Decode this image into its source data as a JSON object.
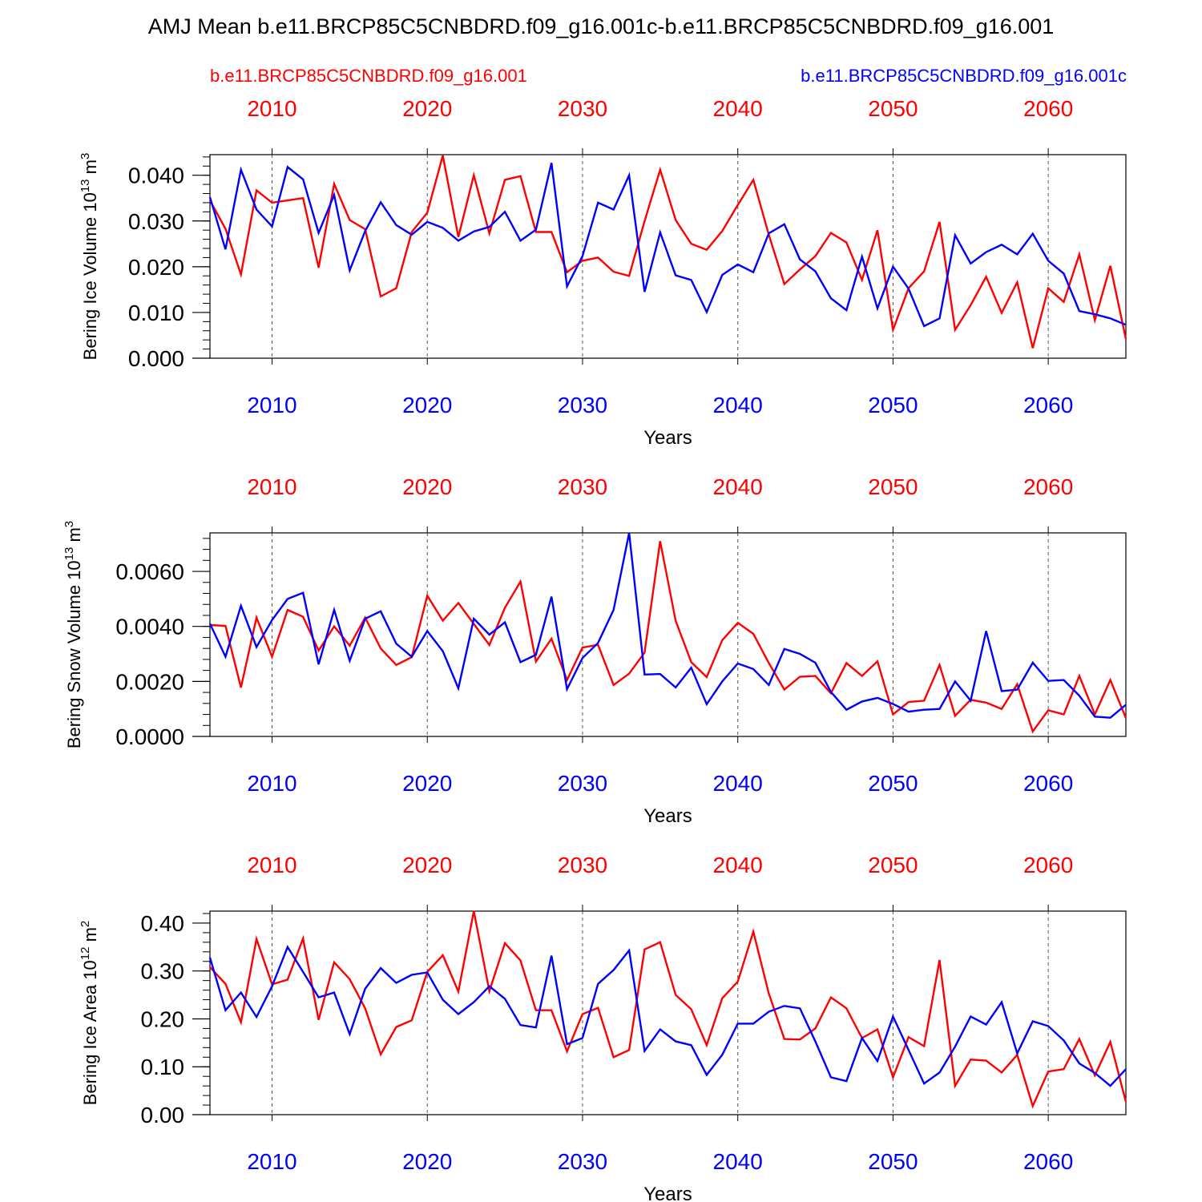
{
  "title": "AMJ Mean b.e11.BRCP85C5CNBDRD.f09_g16.001c-b.e11.BRCP85C5CNBDRD.f09_g16.001",
  "legend": {
    "red_label": "b.e11.BRCP85C5CNBDRD.f09_g16.001",
    "blue_label": "b.e11.BRCP85C5CNBDRD.f09_g16.001c"
  },
  "colors": {
    "red": "#ff0000",
    "blue": "#0000ff"
  },
  "chart_data": [
    {
      "type": "line",
      "ylabel": "Bering Ice Volume 10",
      "ylabel_exp": "13",
      "ylabel_unit": "m",
      "ylabel_unit_exp": "3",
      "xlabel": "Years",
      "xlim": [
        2006,
        2065
      ],
      "ylim": [
        0.0,
        0.0445
      ],
      "x_ticks": [
        "2010",
        "2020",
        "2030",
        "2040",
        "2050",
        "2060"
      ],
      "y_ticks": [
        "0.000",
        "0.010",
        "0.020",
        "0.030",
        "0.040"
      ],
      "y_minor_step": 0.002,
      "grid": "dashed vertical at major x ticks",
      "x_start": 2006,
      "series": [
        {
          "color": "red",
          "values": [
            0.0345,
            0.0283,
            0.0183,
            0.0367,
            0.034,
            0.0345,
            0.035,
            0.0198,
            0.0381,
            0.0302,
            0.0282,
            0.0135,
            0.0153,
            0.0276,
            0.0318,
            0.0443,
            0.0265,
            0.04,
            0.0273,
            0.039,
            0.0398,
            0.0276,
            0.0276,
            0.0188,
            0.0213,
            0.022,
            0.0189,
            0.018,
            0.03,
            0.0412,
            0.0302,
            0.025,
            0.0237,
            0.0278,
            0.0335,
            0.039,
            0.027,
            0.0162,
            0.0194,
            0.0223,
            0.0274,
            0.0253,
            0.0171,
            0.028,
            0.0062,
            0.0153,
            0.019,
            0.0298,
            0.0062,
            0.0116,
            0.0178,
            0.0099,
            0.0166,
            0.0022,
            0.0153,
            0.0123,
            0.0227,
            0.0083,
            0.0202,
            0.0042
          ]
        },
        {
          "color": "blue",
          "values": [
            0.0352,
            0.0238,
            0.0412,
            0.0325,
            0.0288,
            0.0418,
            0.0391,
            0.0274,
            0.0357,
            0.0192,
            0.0278,
            0.0341,
            0.0291,
            0.027,
            0.0298,
            0.0285,
            0.0257,
            0.0277,
            0.0287,
            0.032,
            0.0257,
            0.0281,
            0.0427,
            0.0157,
            0.0223,
            0.034,
            0.0325,
            0.04,
            0.0145,
            0.0275,
            0.0181,
            0.0171,
            0.0101,
            0.0182,
            0.0205,
            0.0188,
            0.0273,
            0.0293,
            0.0216,
            0.019,
            0.0131,
            0.0105,
            0.0222,
            0.0109,
            0.02,
            0.0152,
            0.007,
            0.0087,
            0.0269,
            0.0207,
            0.0232,
            0.0248,
            0.0227,
            0.0272,
            0.0213,
            0.0185,
            0.0103,
            0.0096,
            0.0087,
            0.0073
          ]
        }
      ]
    },
    {
      "type": "line",
      "ylabel": "Bering Snow Volume 10",
      "ylabel_exp": "13",
      "ylabel_unit": "m",
      "ylabel_unit_exp": "3",
      "xlabel": "Years",
      "xlim": [
        2006,
        2065
      ],
      "ylim": [
        0.0,
        0.0074
      ],
      "x_ticks": [
        "2010",
        "2020",
        "2030",
        "2040",
        "2050",
        "2060"
      ],
      "y_ticks": [
        "0.0000",
        "0.0020",
        "0.0040",
        "0.0060"
      ],
      "y_minor_step": 0.0004,
      "grid": "dashed vertical at major x ticks",
      "x_start": 2006,
      "series": [
        {
          "color": "red",
          "values": [
            0.00405,
            0.00402,
            0.00178,
            0.00432,
            0.0029,
            0.0046,
            0.00435,
            0.00312,
            0.004,
            0.0033,
            0.00432,
            0.0032,
            0.0026,
            0.00288,
            0.00512,
            0.00421,
            0.00485,
            0.00409,
            0.00332,
            0.00468,
            0.00563,
            0.00272,
            0.00355,
            0.00205,
            0.00323,
            0.00333,
            0.00187,
            0.00228,
            0.00305,
            0.0071,
            0.0042,
            0.0027,
            0.00216,
            0.0035,
            0.00413,
            0.00373,
            0.00267,
            0.0017,
            0.00217,
            0.0022,
            0.00157,
            0.00267,
            0.0022,
            0.00273,
            0.0008,
            0.00125,
            0.0013,
            0.0026,
            0.00075,
            0.00133,
            0.00123,
            0.001,
            0.0019,
            0.00018,
            0.00095,
            0.0008,
            0.0022,
            0.0008,
            0.00205,
            0.00067
          ]
        },
        {
          "color": "blue",
          "values": [
            0.0041,
            0.0029,
            0.00475,
            0.00325,
            0.00423,
            0.005,
            0.00522,
            0.00262,
            0.0046,
            0.00275,
            0.00428,
            0.00455,
            0.00337,
            0.0029,
            0.00383,
            0.0031,
            0.00175,
            0.00428,
            0.0037,
            0.00415,
            0.0027,
            0.00297,
            0.00508,
            0.00172,
            0.00285,
            0.0034,
            0.0046,
            0.0074,
            0.00225,
            0.00227,
            0.00178,
            0.0025,
            0.00117,
            0.002,
            0.00265,
            0.00245,
            0.00187,
            0.00318,
            0.003,
            0.00268,
            0.00162,
            0.00097,
            0.00127,
            0.0014,
            0.00118,
            0.0009,
            0.00097,
            0.001,
            0.002,
            0.0013,
            0.00383,
            0.00165,
            0.0017,
            0.00268,
            0.00202,
            0.00205,
            0.00148,
            0.00072,
            0.00068,
            0.00115
          ]
        }
      ]
    },
    {
      "type": "line",
      "ylabel": "Bering Ice Area 10",
      "ylabel_exp": "12",
      "ylabel_unit": "m",
      "ylabel_unit_exp": "2",
      "xlabel": "Years",
      "xlim": [
        2006,
        2065
      ],
      "ylim": [
        0.0,
        0.425
      ],
      "x_ticks": [
        "2010",
        "2020",
        "2030",
        "2040",
        "2050",
        "2060"
      ],
      "y_ticks": [
        "0.00",
        "0.10",
        "0.20",
        "0.30",
        "0.40"
      ],
      "y_minor_step": 0.02,
      "grid": "dashed vertical at major x ticks",
      "x_start": 2006,
      "series": [
        {
          "color": "red",
          "values": [
            0.308,
            0.273,
            0.193,
            0.367,
            0.272,
            0.282,
            0.368,
            0.198,
            0.318,
            0.283,
            0.222,
            0.126,
            0.183,
            0.197,
            0.298,
            0.333,
            0.257,
            0.425,
            0.258,
            0.358,
            0.322,
            0.218,
            0.218,
            0.132,
            0.21,
            0.223,
            0.12,
            0.135,
            0.345,
            0.36,
            0.25,
            0.22,
            0.145,
            0.243,
            0.278,
            0.382,
            0.253,
            0.158,
            0.157,
            0.18,
            0.245,
            0.222,
            0.16,
            0.178,
            0.078,
            0.162,
            0.143,
            0.323,
            0.06,
            0.115,
            0.113,
            0.088,
            0.125,
            0.018,
            0.09,
            0.095,
            0.158,
            0.082,
            0.152,
            0.027
          ]
        },
        {
          "color": "blue",
          "values": [
            0.328,
            0.218,
            0.255,
            0.204,
            0.268,
            0.35,
            0.298,
            0.245,
            0.255,
            0.168,
            0.263,
            0.306,
            0.275,
            0.292,
            0.297,
            0.24,
            0.21,
            0.235,
            0.268,
            0.242,
            0.187,
            0.182,
            0.332,
            0.147,
            0.16,
            0.273,
            0.302,
            0.343,
            0.133,
            0.178,
            0.153,
            0.145,
            0.083,
            0.125,
            0.19,
            0.19,
            0.215,
            0.227,
            0.222,
            0.153,
            0.078,
            0.07,
            0.16,
            0.112,
            0.205,
            0.135,
            0.065,
            0.088,
            0.142,
            0.205,
            0.188,
            0.235,
            0.128,
            0.195,
            0.185,
            0.155,
            0.107,
            0.087,
            0.06,
            0.095
          ]
        }
      ]
    }
  ]
}
